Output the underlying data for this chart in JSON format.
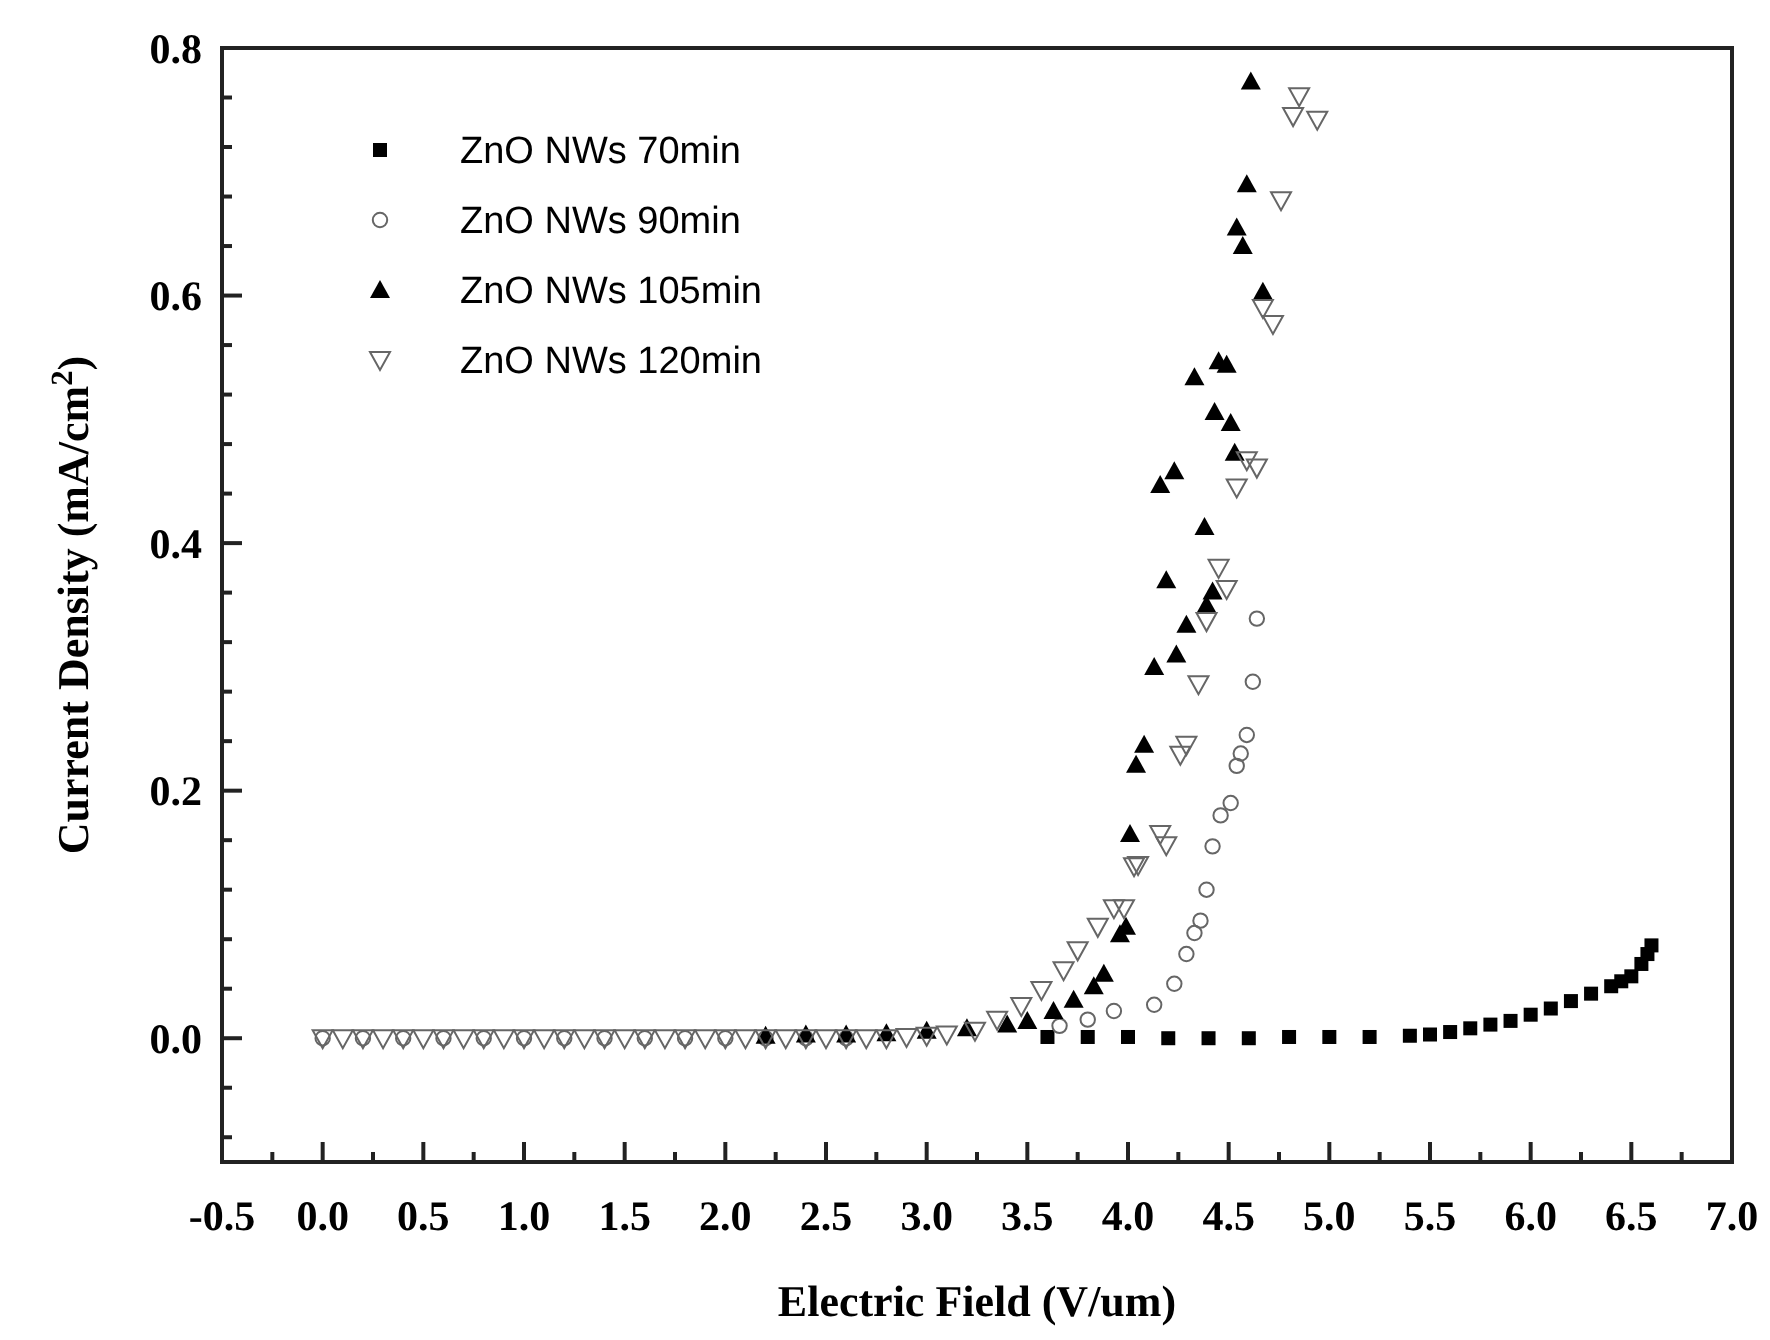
{
  "chart_data": {
    "type": "scatter",
    "xlabel": "Electric Field (V/um)",
    "ylabel": "Current Density (mA/cm$^{2}$)",
    "xlim": [
      -0.5,
      7.0
    ],
    "ylim": [
      -0.1,
      0.8
    ],
    "xticks": [
      {
        "value": -0.5,
        "label": "-0.5"
      },
      {
        "value": -0.25,
        "label": null
      },
      {
        "value": 0,
        "label": "0.0"
      },
      {
        "value": 0.25,
        "label": null
      },
      {
        "value": 0.5,
        "label": "0.5"
      },
      {
        "value": 0.75,
        "label": null
      },
      {
        "value": 1,
        "label": "1.0"
      },
      {
        "value": 1.25,
        "label": null
      },
      {
        "value": 1.5,
        "label": "1.5"
      },
      {
        "value": 1.75,
        "label": null
      },
      {
        "value": 2,
        "label": "2.0"
      },
      {
        "value": 2.25,
        "label": null
      },
      {
        "value": 2.5,
        "label": "2.5"
      },
      {
        "value": 2.75,
        "label": null
      },
      {
        "value": 3,
        "label": "3.0"
      },
      {
        "value": 3.25,
        "label": null
      },
      {
        "value": 3.5,
        "label": "3.5"
      },
      {
        "value": 3.75,
        "label": null
      },
      {
        "value": 4,
        "label": "4.0"
      },
      {
        "value": 4.25,
        "label": null
      },
      {
        "value": 4.5,
        "label": "4.5"
      },
      {
        "value": 4.75,
        "label": null
      },
      {
        "value": 5,
        "label": "5.0"
      },
      {
        "value": 5.25,
        "label": null
      },
      {
        "value": 5.5,
        "label": "5.5"
      },
      {
        "value": 5.75,
        "label": null
      },
      {
        "value": 6,
        "label": "6.0"
      },
      {
        "value": 6.25,
        "label": null
      },
      {
        "value": 6.5,
        "label": "6.5"
      },
      {
        "value": 6.75,
        "label": null
      },
      {
        "value": 7,
        "label": "7.0"
      }
    ],
    "yticks": [
      {
        "value": -0.08,
        "label": null
      },
      {
        "value": -0.04,
        "label": null
      },
      {
        "value": 0,
        "label": "0.0"
      },
      {
        "value": 0.04,
        "label": null
      },
      {
        "value": 0.08,
        "label": null
      },
      {
        "value": 0.12,
        "label": null
      },
      {
        "value": 0.16,
        "label": null
      },
      {
        "value": 0.2,
        "label": "0.2"
      },
      {
        "value": 0.24,
        "label": null
      },
      {
        "value": 0.28,
        "label": null
      },
      {
        "value": 0.32,
        "label": null
      },
      {
        "value": 0.36,
        "label": null
      },
      {
        "value": 0.4,
        "label": "0.4"
      },
      {
        "value": 0.44,
        "label": null
      },
      {
        "value": 0.48,
        "label": null
      },
      {
        "value": 0.52,
        "label": null
      },
      {
        "value": 0.56,
        "label": null
      },
      {
        "value": 0.6,
        "label": "0.6"
      },
      {
        "value": 0.64,
        "label": null
      },
      {
        "value": 0.68,
        "label": null
      },
      {
        "value": 0.72,
        "label": null
      },
      {
        "value": 0.76,
        "label": null
      },
      {
        "value": 0.8,
        "label": "0.8"
      }
    ],
    "grid": false,
    "legend": "top left",
    "series": [
      {
        "name": "ZnO NWs 70min",
        "color": "#000000",
        "marker": "square",
        "x": [
          3.6,
          3.8,
          4.0,
          4.2,
          4.4,
          4.6,
          4.8,
          5.0,
          5.2,
          5.4,
          5.5,
          5.6,
          5.7,
          5.8,
          5.9,
          6.0,
          6.1,
          6.2,
          6.3,
          6.4,
          6.45,
          6.5,
          6.55,
          6.58,
          6.6
        ],
        "values": [
          0.001,
          0.001,
          0.001,
          0.0,
          0.0,
          0.0,
          0.001,
          0.001,
          0.001,
          0.002,
          0.003,
          0.005,
          0.008,
          0.011,
          0.014,
          0.019,
          0.024,
          0.03,
          0.036,
          0.042,
          0.046,
          0.05,
          0.06,
          0.068,
          0.075
        ]
      },
      {
        "name": "ZnO NWs 90min",
        "color": "#666666",
        "marker": "circle",
        "x": [
          0,
          0.2,
          0.4,
          0.6,
          0.8,
          1.0,
          1.2,
          1.4,
          1.6,
          1.8,
          2.0,
          2.2,
          2.4,
          2.6,
          3.66,
          3.8,
          3.93,
          4.13,
          4.23,
          4.29,
          4.33,
          4.36,
          4.39,
          4.42,
          4.46,
          4.51,
          4.54,
          4.56,
          4.59,
          4.62,
          4.64
        ],
        "values": [
          0,
          0,
          0,
          0,
          0,
          0,
          0,
          0,
          0,
          0,
          0,
          0,
          0,
          0,
          0.01,
          0.015,
          0.022,
          0.027,
          0.044,
          0.068,
          0.085,
          0.095,
          0.12,
          0.155,
          0.18,
          0.19,
          0.22,
          0.23,
          0.245,
          0.288,
          0.339
        ]
      },
      {
        "name": "ZnO NWs 105min",
        "color": "#000000",
        "marker": "triangle",
        "x": [
          2.2,
          2.4,
          2.6,
          2.8,
          3.0,
          3.2,
          3.4,
          3.5,
          3.63,
          3.73,
          3.83,
          3.88,
          3.96,
          3.99,
          4.01,
          4.04,
          4.08,
          4.13,
          4.24,
          4.29,
          4.39,
          4.19,
          4.42,
          4.38,
          4.16,
          4.23,
          4.53,
          4.43,
          4.51,
          4.33,
          4.45,
          4.49,
          4.67,
          4.57,
          4.54,
          4.59,
          4.61
        ],
        "values": [
          0.002,
          0.003,
          0.003,
          0.004,
          0.006,
          0.008,
          0.011,
          0.014,
          0.022,
          0.031,
          0.042,
          0.052,
          0.084,
          0.09,
          0.165,
          0.221,
          0.237,
          0.3,
          0.31,
          0.334,
          0.35,
          0.37,
          0.361,
          0.413,
          0.447,
          0.458,
          0.473,
          0.506,
          0.497,
          0.534,
          0.547,
          0.544,
          0.603,
          0.64,
          0.655,
          0.69,
          0.773
        ]
      },
      {
        "name": "ZnO NWs 120min",
        "color": "#666666",
        "marker": "triangle-down",
        "x": [
          0,
          0.1,
          0.2,
          0.3,
          0.4,
          0.5,
          0.6,
          0.7,
          0.8,
          0.9,
          1.0,
          1.1,
          1.2,
          1.3,
          1.4,
          1.5,
          1.6,
          1.7,
          1.8,
          1.9,
          2.0,
          2.1,
          2.2,
          2.3,
          2.4,
          2.5,
          2.6,
          2.7,
          2.8,
          2.9,
          3.0,
          3.1,
          3.24,
          3.35,
          3.47,
          3.57,
          3.68,
          3.75,
          3.85,
          3.93,
          3.98,
          4.03,
          4.05,
          4.16,
          4.19,
          4.26,
          4.29,
          4.35,
          4.39,
          4.45,
          4.49,
          4.54,
          4.59,
          4.64,
          4.67,
          4.72,
          4.76,
          4.82,
          4.85,
          4.94
        ],
        "values": [
          0,
          0,
          0,
          0,
          0,
          0,
          0,
          0,
          0,
          0,
          0,
          0,
          0,
          0,
          0,
          0,
          0,
          0,
          0,
          0,
          0,
          0,
          0,
          0,
          0,
          0,
          0,
          0,
          0,
          0.001,
          0.002,
          0.003,
          0.006,
          0.015,
          0.026,
          0.039,
          0.055,
          0.071,
          0.09,
          0.105,
          0.105,
          0.139,
          0.14,
          0.165,
          0.156,
          0.229,
          0.237,
          0.286,
          0.337,
          0.38,
          0.363,
          0.445,
          0.467,
          0.461,
          0.59,
          0.577,
          0.677,
          0.745,
          0.761,
          0.742
        ]
      }
    ]
  }
}
